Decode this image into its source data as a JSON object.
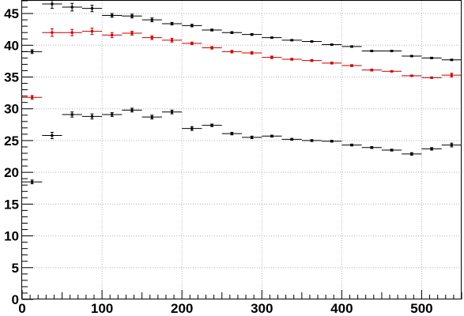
{
  "chart_data": {
    "type": "scatter",
    "title": "",
    "xlabel": "",
    "ylabel": "",
    "xlim": [
      0,
      550
    ],
    "ylim": [
      0,
      47
    ],
    "grid": true,
    "legend": "none",
    "bin_width": 25,
    "x_ticks": [
      0,
      100,
      200,
      300,
      400,
      500
    ],
    "y_ticks": [
      0,
      5,
      10,
      15,
      20,
      25,
      30,
      35,
      40,
      45
    ],
    "series": [
      {
        "color": "#000000",
        "points": [
          {
            "x": 12.5,
            "y": 39.0,
            "err": 0.3
          },
          {
            "x": 37.5,
            "y": 46.5,
            "err": 0.7
          },
          {
            "x": 62.5,
            "y": 46.0,
            "err": 0.6
          },
          {
            "x": 87.5,
            "y": 45.8,
            "err": 0.5
          },
          {
            "x": 112.5,
            "y": 44.7,
            "err": 0.3
          },
          {
            "x": 137.5,
            "y": 44.6,
            "err": 0.3
          },
          {
            "x": 162.5,
            "y": 44.0,
            "err": 0.3
          },
          {
            "x": 187.5,
            "y": 43.4,
            "err": 0.2
          },
          {
            "x": 212.5,
            "y": 43.1,
            "err": 0.2
          },
          {
            "x": 237.5,
            "y": 42.4,
            "err": 0.15
          },
          {
            "x": 262.5,
            "y": 42.0,
            "err": 0.15
          },
          {
            "x": 287.5,
            "y": 41.7,
            "err": 0.15
          },
          {
            "x": 312.5,
            "y": 41.2,
            "err": 0.1
          },
          {
            "x": 337.5,
            "y": 40.8,
            "err": 0.1
          },
          {
            "x": 362.5,
            "y": 40.6,
            "err": 0.1
          },
          {
            "x": 387.5,
            "y": 40.1,
            "err": 0.1
          },
          {
            "x": 412.5,
            "y": 39.8,
            "err": 0.1
          },
          {
            "x": 437.5,
            "y": 39.1,
            "err": 0.1
          },
          {
            "x": 462.5,
            "y": 39.1,
            "err": 0.1
          },
          {
            "x": 487.5,
            "y": 38.3,
            "err": 0.1
          },
          {
            "x": 512.5,
            "y": 38.0,
            "err": 0.1
          },
          {
            "x": 537.5,
            "y": 37.7,
            "err": 0.1
          }
        ]
      },
      {
        "color": "#cc0000",
        "points": [
          {
            "x": 12.5,
            "y": 31.8,
            "err": 0.3
          },
          {
            "x": 37.5,
            "y": 42.0,
            "err": 0.6
          },
          {
            "x": 62.5,
            "y": 42.0,
            "err": 0.5
          },
          {
            "x": 87.5,
            "y": 42.2,
            "err": 0.5
          },
          {
            "x": 112.5,
            "y": 41.6,
            "err": 0.4
          },
          {
            "x": 137.5,
            "y": 41.9,
            "err": 0.3
          },
          {
            "x": 162.5,
            "y": 41.2,
            "err": 0.3
          },
          {
            "x": 187.5,
            "y": 40.8,
            "err": 0.3
          },
          {
            "x": 212.5,
            "y": 40.3,
            "err": 0.2
          },
          {
            "x": 237.5,
            "y": 39.6,
            "err": 0.2
          },
          {
            "x": 262.5,
            "y": 39.0,
            "err": 0.2
          },
          {
            "x": 287.5,
            "y": 38.8,
            "err": 0.2
          },
          {
            "x": 312.5,
            "y": 38.1,
            "err": 0.2
          },
          {
            "x": 337.5,
            "y": 37.8,
            "err": 0.15
          },
          {
            "x": 362.5,
            "y": 37.6,
            "err": 0.15
          },
          {
            "x": 387.5,
            "y": 37.2,
            "err": 0.15
          },
          {
            "x": 412.5,
            "y": 36.8,
            "err": 0.15
          },
          {
            "x": 437.5,
            "y": 36.1,
            "err": 0.15
          },
          {
            "x": 462.5,
            "y": 35.9,
            "err": 0.1
          },
          {
            "x": 487.5,
            "y": 35.2,
            "err": 0.1
          },
          {
            "x": 512.5,
            "y": 34.9,
            "err": 0.1
          },
          {
            "x": 537.5,
            "y": 35.3,
            "err": 0.3
          }
        ]
      },
      {
        "color": "#000000",
        "points": [
          {
            "x": 12.5,
            "y": 18.5,
            "err": 0.3
          },
          {
            "x": 37.5,
            "y": 25.8,
            "err": 0.5
          },
          {
            "x": 62.5,
            "y": 29.1,
            "err": 0.4
          },
          {
            "x": 87.5,
            "y": 28.8,
            "err": 0.4
          },
          {
            "x": 112.5,
            "y": 29.1,
            "err": 0.3
          },
          {
            "x": 137.5,
            "y": 29.8,
            "err": 0.3
          },
          {
            "x": 162.5,
            "y": 28.7,
            "err": 0.3
          },
          {
            "x": 187.5,
            "y": 29.5,
            "err": 0.3
          },
          {
            "x": 212.5,
            "y": 26.9,
            "err": 0.3
          },
          {
            "x": 237.5,
            "y": 27.4,
            "err": 0.2
          },
          {
            "x": 262.5,
            "y": 26.1,
            "err": 0.2
          },
          {
            "x": 287.5,
            "y": 25.5,
            "err": 0.2
          },
          {
            "x": 312.5,
            "y": 25.7,
            "err": 0.15
          },
          {
            "x": 337.5,
            "y": 25.2,
            "err": 0.15
          },
          {
            "x": 362.5,
            "y": 25.0,
            "err": 0.15
          },
          {
            "x": 387.5,
            "y": 24.9,
            "err": 0.15
          },
          {
            "x": 412.5,
            "y": 24.3,
            "err": 0.15
          },
          {
            "x": 437.5,
            "y": 23.9,
            "err": 0.15
          },
          {
            "x": 462.5,
            "y": 23.5,
            "err": 0.15
          },
          {
            "x": 487.5,
            "y": 22.9,
            "err": 0.2
          },
          {
            "x": 512.5,
            "y": 23.7,
            "err": 0.2
          },
          {
            "x": 537.5,
            "y": 24.3,
            "err": 0.3
          }
        ]
      }
    ]
  }
}
